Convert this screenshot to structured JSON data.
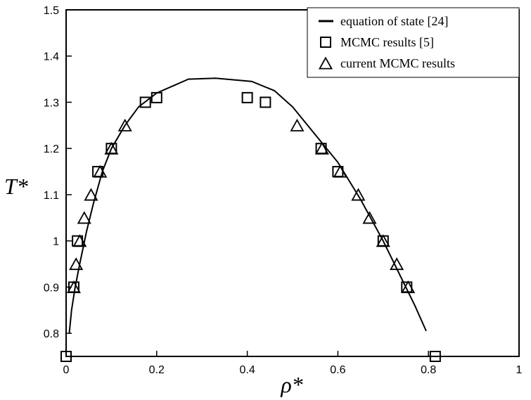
{
  "chart_data": {
    "type": "scatter",
    "xlabel": "ρ*",
    "ylabel": "T*",
    "xlim": [
      0,
      1
    ],
    "ylim": [
      0.75,
      1.5
    ],
    "x_ticks": [
      0,
      0.2,
      0.4,
      0.6,
      0.8,
      1
    ],
    "x_tick_labels": [
      "0",
      "0.2",
      "0.4",
      "0.6",
      "0.8",
      "1"
    ],
    "y_ticks": [
      0.8,
      0.9,
      1.0,
      1.1,
      1.2,
      1.3,
      1.4,
      1.5
    ],
    "y_tick_labels": [
      "0.8",
      "0.9",
      "1",
      "1.1",
      "1.2",
      "1.3",
      "1.4",
      "1.5"
    ],
    "grid": false,
    "legend_position": "top-right",
    "series": [
      {
        "name": "equation of state [24]",
        "kind": "line",
        "color": "#000000",
        "x": [
          0.007,
          0.012,
          0.02,
          0.03,
          0.045,
          0.06,
          0.08,
          0.1,
          0.13,
          0.16,
          0.2,
          0.27,
          0.33,
          0.41,
          0.46,
          0.5,
          0.55,
          0.6,
          0.65,
          0.7,
          0.74,
          0.77,
          0.795
        ],
        "y": [
          0.8,
          0.85,
          0.9,
          0.95,
          1.02,
          1.08,
          1.15,
          1.2,
          1.25,
          1.29,
          1.32,
          1.35,
          1.352,
          1.345,
          1.325,
          1.29,
          1.23,
          1.17,
          1.09,
          1.0,
          0.92,
          0.86,
          0.805
        ]
      },
      {
        "name": "MCMC results [5]",
        "kind": "square",
        "x": [
          0.0,
          0.017,
          0.025,
          0.07,
          0.1,
          0.175,
          0.2,
          0.4,
          0.44,
          0.563,
          0.6,
          0.7,
          0.752,
          0.815
        ],
        "y": [
          0.75,
          0.9,
          1.0,
          1.15,
          1.2,
          1.3,
          1.31,
          1.31,
          1.3,
          1.2,
          1.15,
          1.0,
          0.9,
          0.75
        ]
      },
      {
        "name": "current MCMC results",
        "kind": "triangle",
        "x": [
          0.017,
          0.022,
          0.03,
          0.04,
          0.055,
          0.075,
          0.1,
          0.13,
          0.51,
          0.565,
          0.605,
          0.645,
          0.67,
          0.7,
          0.73,
          0.755
        ],
        "y": [
          0.9,
          0.95,
          1.0,
          1.05,
          1.1,
          1.15,
          1.2,
          1.25,
          1.25,
          1.2,
          1.15,
          1.1,
          1.05,
          1.0,
          0.95,
          0.9
        ]
      }
    ]
  }
}
